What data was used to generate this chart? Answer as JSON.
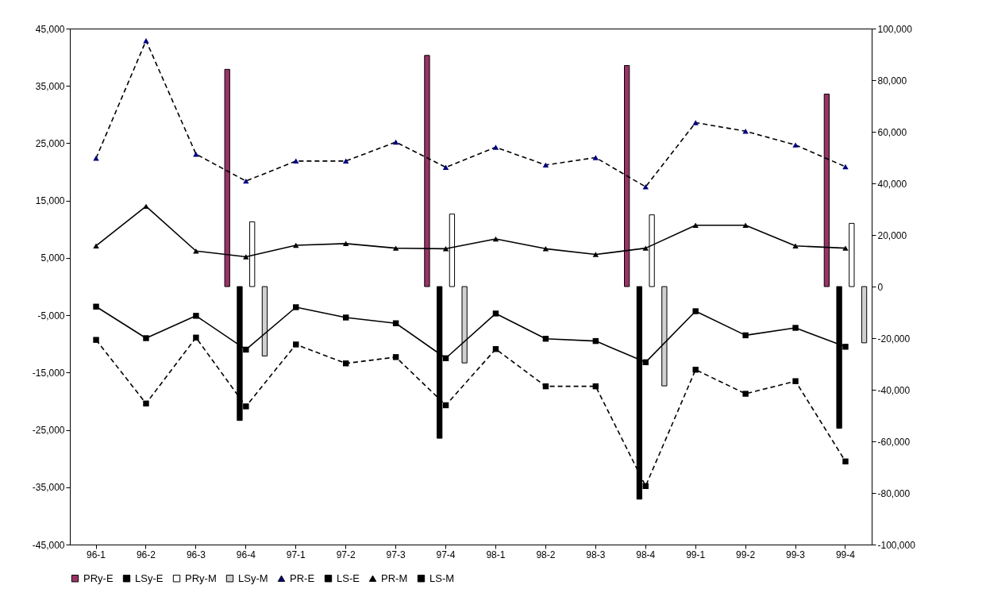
{
  "chart_data": {
    "type": "line",
    "categories": [
      "96-1",
      "96-2",
      "96-3",
      "96-4",
      "97-1",
      "97-2",
      "97-3",
      "97-4",
      "98-1",
      "98-2",
      "98-3",
      "98-4",
      "99-1",
      "99-2",
      "99-3",
      "99-4"
    ],
    "series": [
      {
        "name": "PRy-E",
        "type": "bar",
        "axis": "y2",
        "color": "#993366",
        "values": [
          null,
          null,
          null,
          84200,
          null,
          null,
          null,
          89600,
          null,
          null,
          null,
          85700,
          null,
          null,
          null,
          74600
        ]
      },
      {
        "name": "LSy-E",
        "type": "bar",
        "axis": "y2",
        "color": "#000000",
        "values": [
          null,
          null,
          null,
          -51900,
          null,
          null,
          null,
          -58800,
          null,
          null,
          null,
          -82400,
          null,
          null,
          null,
          -54900
        ]
      },
      {
        "name": "PRy-M",
        "type": "bar",
        "axis": "y2",
        "color": "#ffffff",
        "values": [
          null,
          null,
          null,
          25100,
          null,
          null,
          null,
          28100,
          null,
          null,
          null,
          27800,
          null,
          null,
          null,
          24500
        ]
      },
      {
        "name": "LSy-M",
        "type": "bar",
        "axis": "y2",
        "color": "#d0d0d0",
        "values": [
          null,
          null,
          null,
          -26900,
          null,
          null,
          null,
          -29600,
          null,
          null,
          null,
          -38500,
          null,
          null,
          null,
          -21800
        ]
      },
      {
        "name": "PR-E",
        "marker": "triangle",
        "line_style": "dashed",
        "color": "#000080",
        "values": [
          22400,
          42900,
          23100,
          18400,
          21900,
          21900,
          25200,
          20800,
          24300,
          21200,
          22500,
          17400,
          28600,
          27100,
          24700,
          20900
        ]
      },
      {
        "name": "LS-E",
        "marker": "square",
        "line_style": "dashed",
        "color": "#000000",
        "values": [
          -9300,
          -20400,
          -8900,
          -20900,
          -10100,
          -13400,
          -12300,
          -20700,
          -10900,
          -17400,
          -17400,
          -34800,
          -14500,
          -18700,
          -16500,
          -30500
        ]
      },
      {
        "name": "PR-M",
        "marker": "triangle",
        "line_style": "solid",
        "color": "#000000",
        "values": [
          7100,
          14000,
          6200,
          5200,
          7200,
          7500,
          6700,
          6600,
          8300,
          6600,
          5600,
          6700,
          10700,
          10700,
          7100,
          6700
        ]
      },
      {
        "name": "LS-M",
        "marker": "square",
        "line_style": "solid",
        "color": "#000000",
        "values": [
          -3500,
          -9000,
          -5100,
          -11000,
          -3600,
          -5400,
          -6400,
          -12500,
          -4700,
          -9100,
          -9500,
          -13200,
          -4300,
          -8500,
          -7200,
          -10500
        ]
      }
    ],
    "ylim": [
      -45000,
      45000
    ],
    "yticks": [
      {
        "value": -45000,
        "label": "-45,000"
      },
      {
        "value": -35000,
        "label": "-35,000"
      },
      {
        "value": -25000,
        "label": "-25,000"
      },
      {
        "value": -15000,
        "label": "-15,000"
      },
      {
        "value": -5000,
        "label": "-5,000"
      },
      {
        "value": 5000,
        "label": "5,000"
      },
      {
        "value": 15000,
        "label": "15,000"
      },
      {
        "value": 25000,
        "label": "25,000"
      },
      {
        "value": 35000,
        "label": "35,000"
      },
      {
        "value": 45000,
        "label": "45,000"
      }
    ],
    "y2lim": [
      -100000,
      100000
    ],
    "y2ticks": [
      {
        "value": -100000,
        "label": "-100,000"
      },
      {
        "value": -80000,
        "label": "-80,000"
      },
      {
        "value": -60000,
        "label": "-60,000"
      },
      {
        "value": -40000,
        "label": "-40,000"
      },
      {
        "value": -20000,
        "label": "-20,000"
      },
      0,
      {
        "value": 20000,
        "label": "20,000"
      },
      {
        "value": 40000,
        "label": "40,000"
      },
      {
        "value": 60000,
        "label": "60,000"
      },
      {
        "value": 80000,
        "label": "80,000"
      },
      {
        "value": 100000,
        "label": "100,000"
      }
    ],
    "grid": false,
    "legend": "bottom"
  }
}
